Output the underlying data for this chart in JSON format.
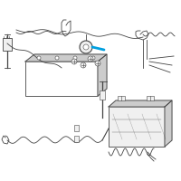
{
  "background_color": "#ffffff",
  "figure_size": [
    2.0,
    2.0
  ],
  "dpi": 100,
  "highlight_color": "#009fdf",
  "line_color": "#444444",
  "fill_light": "#f0f0f0",
  "fill_gray": "#cccccc",
  "lw_main": 0.6,
  "lw_thick": 0.9,
  "lw_thin": 0.4
}
